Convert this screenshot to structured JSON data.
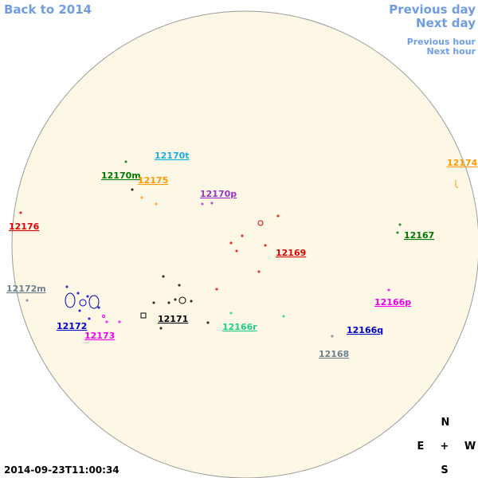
{
  "navigation": {
    "back": "Back to 2014",
    "previous_day": "Previous day",
    "next_day": "Next day",
    "previous_hour": "Previous hour",
    "next_hour": "Next hour"
  },
  "regions": [
    {
      "label": "12170t",
      "color": "#19aee6"
    },
    {
      "label": "12170m",
      "color": "#007700"
    },
    {
      "label": "12175",
      "color": "#ff9900"
    },
    {
      "label": "12170p",
      "color": "#9933cc"
    },
    {
      "label": "12174",
      "color": "#ff9900"
    },
    {
      "label": "12176",
      "color": "#dd0000"
    },
    {
      "label": "12167",
      "color": "#007700"
    },
    {
      "label": "12169",
      "color": "#dd0000"
    },
    {
      "label": "12172m",
      "color": "#708090"
    },
    {
      "label": "12166p",
      "color": "#ee00ee"
    },
    {
      "label": "12171",
      "color": "#000000"
    },
    {
      "label": "12166r",
      "color": "#22cc88"
    },
    {
      "label": "12172",
      "color": "#0000cc"
    },
    {
      "label": "12166q",
      "color": "#0000cc"
    },
    {
      "label": "12173",
      "color": "#ee00ee"
    },
    {
      "label": "12168",
      "color": "#708090"
    }
  ],
  "compass": {
    "north": "N",
    "east": "E",
    "center": "+",
    "west": "W",
    "south": "S"
  },
  "timestamp": "2014-09-23T11:00:34"
}
